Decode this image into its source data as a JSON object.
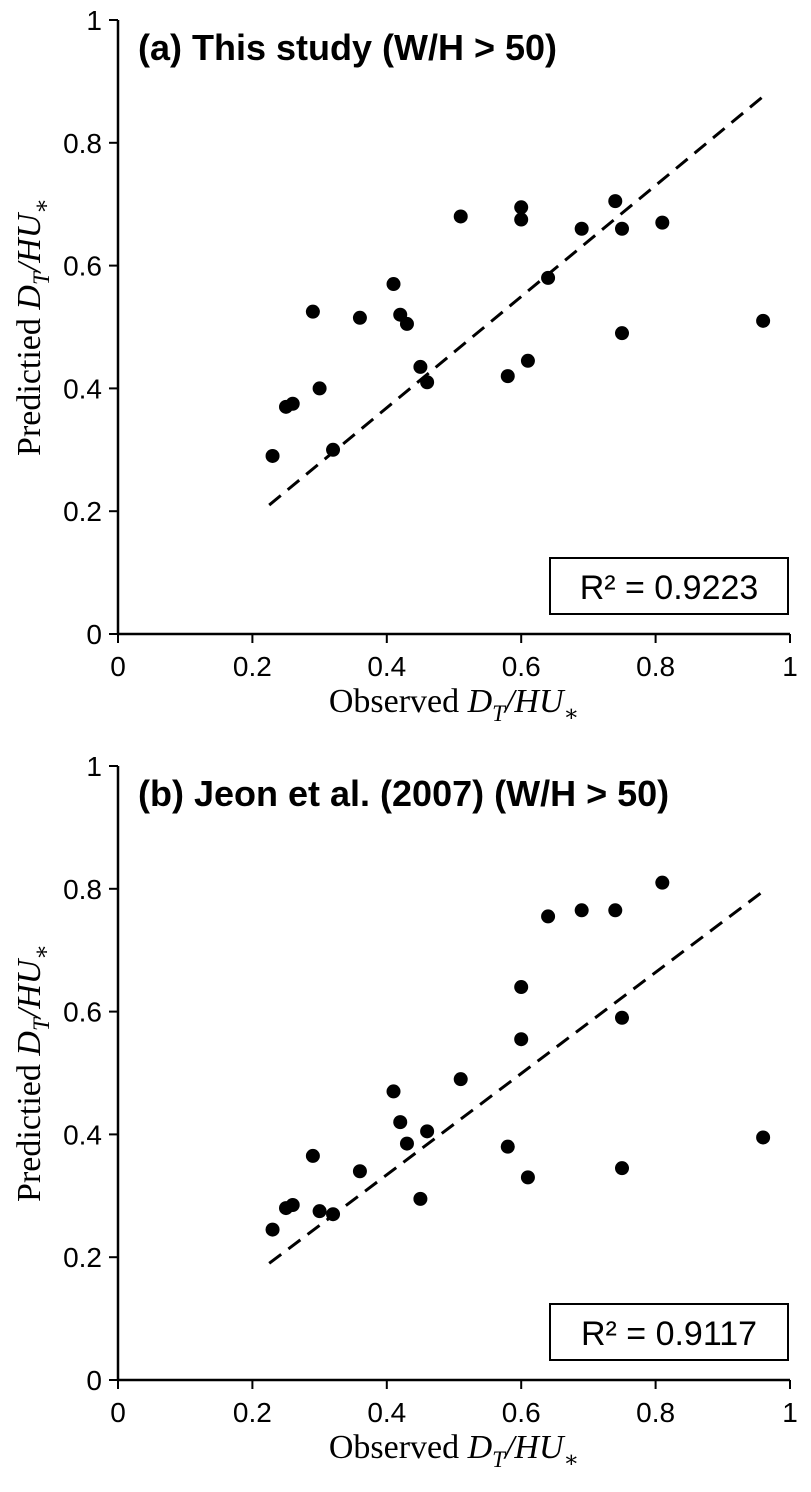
{
  "figure": {
    "background": "#ffffff",
    "ink_color": "#000000",
    "panel_count": 2
  },
  "chart_data": [
    {
      "type": "scatter",
      "panel": "a",
      "title": "(a) This study (W/H > 50)",
      "annotation": "R² = 0.9223",
      "xlabel": "Observed D_T/HU∗",
      "ylabel": "Predictied D_T/HU∗",
      "xlabel_parts": [
        {
          "text": "Observed ",
          "italic": false,
          "sub": false
        },
        {
          "text": "D",
          "italic": true,
          "sub": false
        },
        {
          "text": "T",
          "italic": true,
          "sub": true
        },
        {
          "text": "/",
          "italic": true,
          "sub": false
        },
        {
          "text": "HU",
          "italic": true,
          "sub": false
        },
        {
          "text": "∗",
          "italic": false,
          "sub": true
        }
      ],
      "ylabel_parts": [
        {
          "text": "Predictied ",
          "italic": false,
          "sub": false
        },
        {
          "text": "D",
          "italic": true,
          "sub": false
        },
        {
          "text": "T",
          "italic": true,
          "sub": true
        },
        {
          "text": "/",
          "italic": true,
          "sub": false
        },
        {
          "text": "HU",
          "italic": true,
          "sub": false
        },
        {
          "text": "∗",
          "italic": false,
          "sub": true
        }
      ],
      "xlim": [
        0,
        1
      ],
      "ylim": [
        0,
        1
      ],
      "xticks": [
        0,
        0.2,
        0.4,
        0.6,
        0.8,
        1
      ],
      "xtick_labels": [
        "0",
        "0.2",
        "0.4",
        "0.6",
        "0.8",
        "1"
      ],
      "yticks": [
        0,
        0.2,
        0.4,
        0.6,
        0.8,
        1
      ],
      "ytick_labels": [
        "0",
        "0.2",
        "0.4",
        "0.6",
        "0.8",
        "1"
      ],
      "grid": false,
      "legend": "none",
      "marker": {
        "shape": "circle",
        "color": "#000000",
        "radius_px": 7
      },
      "fit_line": {
        "style": "dashed",
        "x": [
          0.225,
          0.965
        ],
        "y": [
          0.21,
          0.88
        ]
      },
      "points": [
        [
          0.23,
          0.29
        ],
        [
          0.25,
          0.37
        ],
        [
          0.26,
          0.375
        ],
        [
          0.29,
          0.525
        ],
        [
          0.3,
          0.4
        ],
        [
          0.32,
          0.3
        ],
        [
          0.36,
          0.515
        ],
        [
          0.41,
          0.57
        ],
        [
          0.42,
          0.52
        ],
        [
          0.43,
          0.505
        ],
        [
          0.45,
          0.435
        ],
        [
          0.46,
          0.41
        ],
        [
          0.51,
          0.68
        ],
        [
          0.58,
          0.42
        ],
        [
          0.6,
          0.675
        ],
        [
          0.6,
          0.695
        ],
        [
          0.61,
          0.445
        ],
        [
          0.64,
          0.58
        ],
        [
          0.69,
          0.66
        ],
        [
          0.74,
          0.705
        ],
        [
          0.75,
          0.49
        ],
        [
          0.75,
          0.66
        ],
        [
          0.81,
          0.67
        ],
        [
          0.96,
          0.51
        ]
      ]
    },
    {
      "type": "scatter",
      "panel": "b",
      "title": "(b) Jeon et al. (2007) (W/H > 50)",
      "annotation": "R² = 0.9117",
      "xlabel": "Observed D_T/HU∗",
      "ylabel": "Predictied D_T/HU∗",
      "xlabel_parts": [
        {
          "text": "Observed ",
          "italic": false,
          "sub": false
        },
        {
          "text": "D",
          "italic": true,
          "sub": false
        },
        {
          "text": "T",
          "italic": true,
          "sub": true
        },
        {
          "text": "/",
          "italic": true,
          "sub": false
        },
        {
          "text": "HU",
          "italic": true,
          "sub": false
        },
        {
          "text": "∗",
          "italic": false,
          "sub": true
        }
      ],
      "ylabel_parts": [
        {
          "text": "Predictied ",
          "italic": false,
          "sub": false
        },
        {
          "text": "D",
          "italic": true,
          "sub": false
        },
        {
          "text": "T",
          "italic": true,
          "sub": true
        },
        {
          "text": "/",
          "italic": true,
          "sub": false
        },
        {
          "text": "HU",
          "italic": true,
          "sub": false
        },
        {
          "text": "∗",
          "italic": false,
          "sub": true
        }
      ],
      "xlim": [
        0,
        1
      ],
      "ylim": [
        0,
        1
      ],
      "xticks": [
        0,
        0.2,
        0.4,
        0.6,
        0.8,
        1
      ],
      "xtick_labels": [
        "0",
        "0.2",
        "0.4",
        "0.6",
        "0.8",
        "1"
      ],
      "yticks": [
        0,
        0.2,
        0.4,
        0.6,
        0.8,
        1
      ],
      "ytick_labels": [
        "0",
        "0.2",
        "0.4",
        "0.6",
        "0.8",
        "1"
      ],
      "grid": false,
      "legend": "none",
      "marker": {
        "shape": "circle",
        "color": "#000000",
        "radius_px": 7
      },
      "fit_line": {
        "style": "dashed",
        "x": [
          0.225,
          0.965
        ],
        "y": [
          0.19,
          0.8
        ]
      },
      "points": [
        [
          0.23,
          0.245
        ],
        [
          0.25,
          0.28
        ],
        [
          0.26,
          0.285
        ],
        [
          0.29,
          0.365
        ],
        [
          0.3,
          0.275
        ],
        [
          0.32,
          0.27
        ],
        [
          0.36,
          0.34
        ],
        [
          0.41,
          0.47
        ],
        [
          0.42,
          0.42
        ],
        [
          0.43,
          0.385
        ],
        [
          0.45,
          0.295
        ],
        [
          0.46,
          0.405
        ],
        [
          0.51,
          0.49
        ],
        [
          0.58,
          0.38
        ],
        [
          0.6,
          0.555
        ],
        [
          0.6,
          0.64
        ],
        [
          0.61,
          0.33
        ],
        [
          0.64,
          0.755
        ],
        [
          0.69,
          0.765
        ],
        [
          0.74,
          0.765
        ],
        [
          0.75,
          0.345
        ],
        [
          0.75,
          0.59
        ],
        [
          0.81,
          0.81
        ],
        [
          0.96,
          0.395
        ]
      ]
    }
  ]
}
